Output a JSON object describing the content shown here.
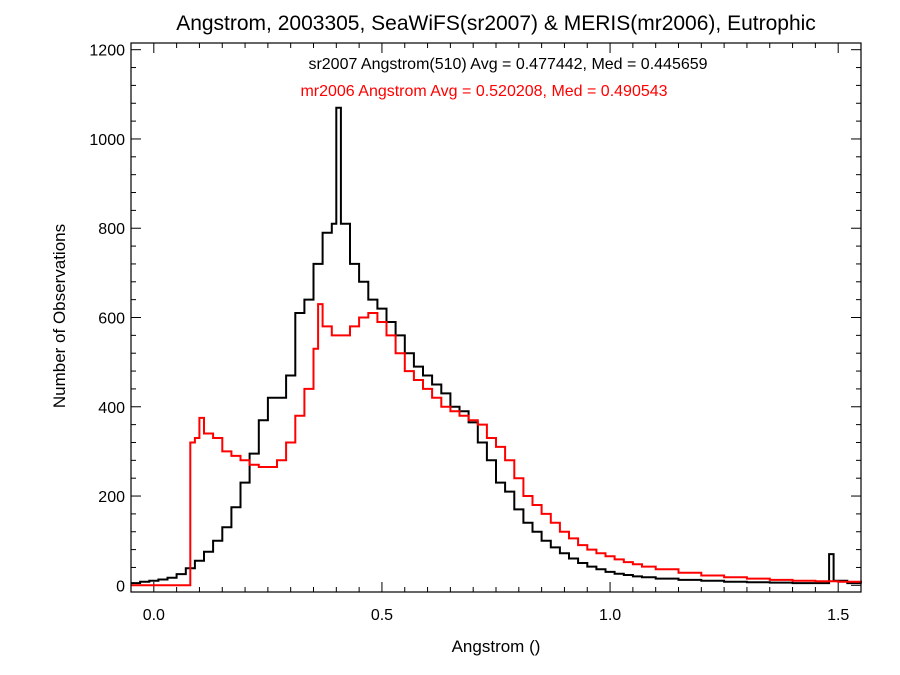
{
  "chart_data": {
    "type": "line",
    "step": true,
    "title": "Angstrom, 2003305, SeaWiFS(sr2007) & MERIS(mr2006), Eutrophic",
    "xlabel": "Angstrom ()",
    "ylabel": "Number of Observations",
    "xlim": [
      -0.05,
      1.55
    ],
    "ylim": [
      -15,
      1215
    ],
    "xticks": [
      0.0,
      0.5,
      1.0,
      1.5
    ],
    "xtick_labels": [
      "0.0",
      "0.5",
      "1.0",
      "1.5"
    ],
    "yticks": [
      0,
      200,
      400,
      600,
      800,
      1000,
      1200
    ],
    "ytick_labels": [
      "0",
      "200",
      "400",
      "600",
      "800",
      "1000",
      "1200"
    ],
    "grid": false,
    "legend_position": "top-center",
    "annotations": [
      {
        "text": "sr2007 Angstrom(510) Avg = 0.477442, Med = 0.445659",
        "color": "#000000"
      },
      {
        "text": "mr2006 Angstrom Avg = 0.520208, Med = 0.490543",
        "color": "#ff0000"
      }
    ],
    "series": [
      {
        "color": "#000000",
        "points": [
          [
            -0.05,
            5
          ],
          [
            -0.03,
            8
          ],
          [
            -0.01,
            10
          ],
          [
            0.01,
            13
          ],
          [
            0.03,
            17
          ],
          [
            0.05,
            25
          ],
          [
            0.07,
            38
          ],
          [
            0.09,
            55
          ],
          [
            0.11,
            75
          ],
          [
            0.13,
            100
          ],
          [
            0.15,
            130
          ],
          [
            0.17,
            175
          ],
          [
            0.19,
            230
          ],
          [
            0.21,
            295
          ],
          [
            0.23,
            370
          ],
          [
            0.25,
            420
          ],
          [
            0.27,
            420
          ],
          [
            0.29,
            470
          ],
          [
            0.31,
            610
          ],
          [
            0.33,
            640
          ],
          [
            0.35,
            720
          ],
          [
            0.37,
            790
          ],
          [
            0.39,
            810
          ],
          [
            0.4,
            1070
          ],
          [
            0.41,
            810
          ],
          [
            0.43,
            720
          ],
          [
            0.45,
            680
          ],
          [
            0.47,
            640
          ],
          [
            0.49,
            620
          ],
          [
            0.51,
            590
          ],
          [
            0.53,
            560
          ],
          [
            0.55,
            520
          ],
          [
            0.57,
            490
          ],
          [
            0.59,
            470
          ],
          [
            0.61,
            450
          ],
          [
            0.63,
            430
          ],
          [
            0.65,
            400
          ],
          [
            0.67,
            390
          ],
          [
            0.69,
            365
          ],
          [
            0.71,
            320
          ],
          [
            0.73,
            280
          ],
          [
            0.75,
            230
          ],
          [
            0.77,
            210
          ],
          [
            0.79,
            170
          ],
          [
            0.81,
            140
          ],
          [
            0.83,
            120
          ],
          [
            0.85,
            100
          ],
          [
            0.87,
            85
          ],
          [
            0.89,
            72
          ],
          [
            0.91,
            60
          ],
          [
            0.93,
            50
          ],
          [
            0.95,
            42
          ],
          [
            0.97,
            36
          ],
          [
            0.99,
            30
          ],
          [
            1.01,
            26
          ],
          [
            1.03,
            23
          ],
          [
            1.05,
            20
          ],
          [
            1.07,
            18
          ],
          [
            1.1,
            15
          ],
          [
            1.15,
            12
          ],
          [
            1.2,
            10
          ],
          [
            1.25,
            8
          ],
          [
            1.3,
            7
          ],
          [
            1.35,
            6
          ],
          [
            1.4,
            5
          ],
          [
            1.45,
            5
          ],
          [
            1.48,
            70
          ],
          [
            1.49,
            10
          ],
          [
            1.52,
            5
          ],
          [
            1.55,
            4
          ]
        ]
      },
      {
        "color": "#ff0000",
        "points": [
          [
            -0.05,
            0
          ],
          [
            0.07,
            0
          ],
          [
            0.08,
            320
          ],
          [
            0.09,
            330
          ],
          [
            0.1,
            375
          ],
          [
            0.11,
            340
          ],
          [
            0.13,
            330
          ],
          [
            0.15,
            300
          ],
          [
            0.17,
            290
          ],
          [
            0.19,
            280
          ],
          [
            0.21,
            270
          ],
          [
            0.23,
            265
          ],
          [
            0.25,
            265
          ],
          [
            0.27,
            280
          ],
          [
            0.29,
            320
          ],
          [
            0.31,
            380
          ],
          [
            0.33,
            440
          ],
          [
            0.35,
            530
          ],
          [
            0.36,
            630
          ],
          [
            0.37,
            580
          ],
          [
            0.39,
            560
          ],
          [
            0.41,
            560
          ],
          [
            0.43,
            580
          ],
          [
            0.45,
            600
          ],
          [
            0.47,
            610
          ],
          [
            0.49,
            590
          ],
          [
            0.51,
            560
          ],
          [
            0.53,
            520
          ],
          [
            0.55,
            480
          ],
          [
            0.57,
            460
          ],
          [
            0.59,
            440
          ],
          [
            0.61,
            420
          ],
          [
            0.63,
            400
          ],
          [
            0.65,
            390
          ],
          [
            0.67,
            380
          ],
          [
            0.69,
            370
          ],
          [
            0.71,
            360
          ],
          [
            0.73,
            330
          ],
          [
            0.75,
            310
          ],
          [
            0.77,
            280
          ],
          [
            0.79,
            240
          ],
          [
            0.81,
            200
          ],
          [
            0.83,
            180
          ],
          [
            0.85,
            160
          ],
          [
            0.87,
            140
          ],
          [
            0.89,
            120
          ],
          [
            0.91,
            105
          ],
          [
            0.93,
            90
          ],
          [
            0.95,
            80
          ],
          [
            0.97,
            72
          ],
          [
            0.99,
            65
          ],
          [
            1.01,
            58
          ],
          [
            1.03,
            52
          ],
          [
            1.05,
            47
          ],
          [
            1.07,
            42
          ],
          [
            1.1,
            36
          ],
          [
            1.15,
            28
          ],
          [
            1.2,
            22
          ],
          [
            1.25,
            18
          ],
          [
            1.3,
            15
          ],
          [
            1.35,
            12
          ],
          [
            1.4,
            10
          ],
          [
            1.45,
            9
          ],
          [
            1.5,
            8
          ],
          [
            1.55,
            6
          ]
        ]
      }
    ]
  }
}
